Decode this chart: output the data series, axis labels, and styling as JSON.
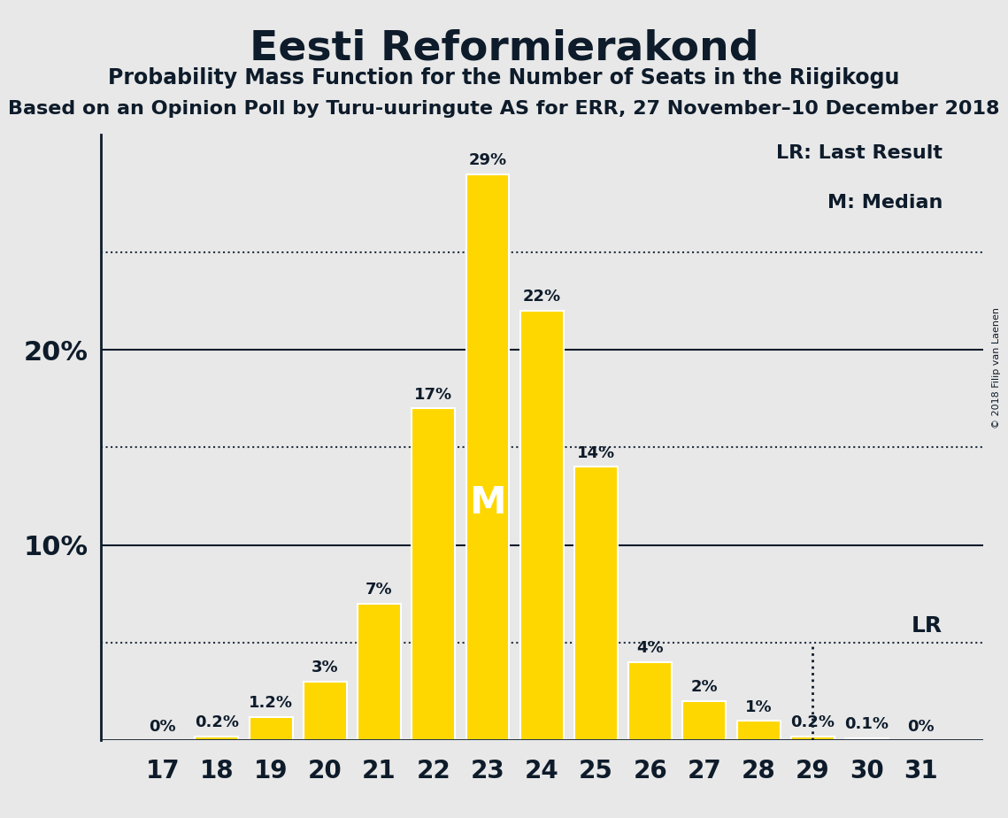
{
  "title": "Eesti Reformierakond",
  "subtitle": "Probability Mass Function for the Number of Seats in the Riigikogu",
  "subtitle2": "Based on an Opinion Poll by Turu-uuringute AS for ERR, 27 November–10 December 2018",
  "copyright": "© 2018 Filip van Laenen",
  "seats": [
    17,
    18,
    19,
    20,
    21,
    22,
    23,
    24,
    25,
    26,
    27,
    28,
    29,
    30,
    31
  ],
  "probabilities": [
    0.0,
    0.2,
    1.2,
    3.0,
    7.0,
    17.0,
    29.0,
    22.0,
    14.0,
    4.0,
    2.0,
    1.0,
    0.2,
    0.1,
    0.0
  ],
  "bar_color": "#FFD700",
  "bar_edge_color": "#FFFFFF",
  "median_seat": 23,
  "median_label": "M",
  "lr_seat": 29,
  "lr_value": 5.0,
  "lr_label": "LR",
  "background_color": "#E8E8E8",
  "text_color": "#0d1b2a",
  "legend_lr": "LR: Last Result",
  "legend_m": "M: Median",
  "ylim": [
    0,
    31
  ],
  "solid_lines": [
    10.0,
    20.0
  ],
  "dotted_lines": [
    5.0,
    15.0,
    25.0
  ],
  "ytick_positions": [
    10,
    20
  ],
  "ytick_labels": [
    "10%",
    "20%"
  ],
  "bar_width": 0.8
}
